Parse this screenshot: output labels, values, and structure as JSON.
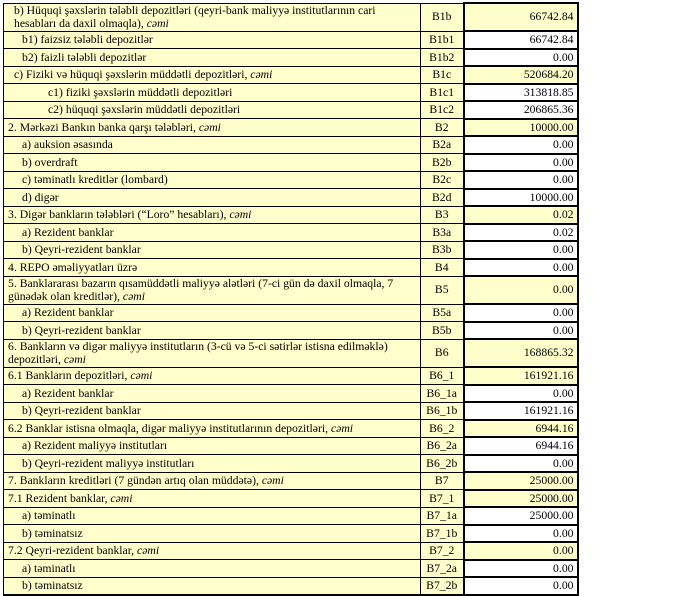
{
  "colors": {
    "cell_fill_yellow": "#FFFFCC",
    "cell_fill_white": "#FFFFFF",
    "border": "#000000",
    "text": "#000000"
  },
  "table": {
    "columns": [
      "description",
      "code",
      "value"
    ],
    "rows": [
      {
        "label": "b) Hüquqi şəxslərin tələbli depozitləri (qeyri-bank maliyyə institutlarının cari hesabları da daxil olmaqla), ",
        "label_italic": "cəmi",
        "code": "B1b",
        "value": "66742.84",
        "indent": 1,
        "summary": true
      },
      {
        "label": "b1) faizsiz tələbli depozitlər",
        "label_italic": "",
        "code": "B1b1",
        "value": "66742.84",
        "indent": 2,
        "summary": false
      },
      {
        "label": "b2) faizli tələbli depozitlər",
        "label_italic": "",
        "code": "B1b2",
        "value": "0.00",
        "indent": 2,
        "summary": false
      },
      {
        "label": "c) Fiziki və hüquqi şəxslərin müddətli depozitləri, ",
        "label_italic": "cəmi",
        "code": "B1c",
        "value": "520684.20",
        "indent": 1,
        "summary": true
      },
      {
        "label": "c1) fiziki şəxslərin müddətli depozitləri",
        "label_italic": "",
        "code": "B1c1",
        "value": "313818.85",
        "indent": 3,
        "summary": false
      },
      {
        "label": "c2) hüquqi şəxslərin müddətli depozitləri",
        "label_italic": "",
        "code": "B1c2",
        "value": "206865.36",
        "indent": 3,
        "summary": false
      },
      {
        "label": "2. Mərkəzi Bankın banka qarşı tələbləri, ",
        "label_italic": "cəmi",
        "code": "B2",
        "value": "10000.00",
        "indent": 0,
        "summary": true
      },
      {
        "label": "a) auksion əsasında",
        "label_italic": "",
        "code": "B2a",
        "value": "0.00",
        "indent": 2,
        "summary": false
      },
      {
        "label": "b) overdraft",
        "label_italic": "",
        "code": "B2b",
        "value": "0.00",
        "indent": 2,
        "summary": false
      },
      {
        "label": "c) təminatlı kreditlər (lombard)",
        "label_italic": "",
        "code": "B2c",
        "value": "0.00",
        "indent": 2,
        "summary": false
      },
      {
        "label": "d) digər",
        "label_italic": "",
        "code": "B2d",
        "value": "10000.00",
        "indent": 2,
        "summary": false
      },
      {
        "label": "3. Digər bankların tələbləri (“Loro” hesabları), ",
        "label_italic": "cəmi",
        "code": "B3",
        "value": "0.02",
        "indent": 0,
        "summary": true
      },
      {
        "label": "a) Rezident banklar",
        "label_italic": "",
        "code": "B3a",
        "value": "0.02",
        "indent": 2,
        "summary": false
      },
      {
        "label": "b) Qeyri-rezident banklar",
        "label_italic": "",
        "code": "B3b",
        "value": "0.00",
        "indent": 2,
        "summary": false
      },
      {
        "label": "4. REPO əməliyyatları  üzrə",
        "label_italic": "",
        "code": "B4",
        "value": "0.00",
        "indent": 0,
        "summary": false
      },
      {
        "label": "5. Banklararası bazarın qısamüddətli maliyyə alətləri (7-ci gün də daxil olmaqla, 7 günədək olan kreditlər), ",
        "label_italic": "cəmi",
        "code": "B5",
        "value": "0.00",
        "indent": 0,
        "summary": true
      },
      {
        "label": "a) Rezident banklar",
        "label_italic": "",
        "code": "B5a",
        "value": "0.00",
        "indent": 2,
        "summary": false
      },
      {
        "label": "b) Qeyri-rezident banklar",
        "label_italic": "",
        "code": "B5b",
        "value": "0.00",
        "indent": 2,
        "summary": false
      },
      {
        "label": "6. Bankların və digər maliyyə institutların (3-cü və 5-ci sətirlər istisna edilməklə) depozitləri, ",
        "label_italic": "cəmi",
        "code": "B6",
        "value": "168865.32",
        "indent": 0,
        "summary": true
      },
      {
        "label": "6.1  Bankların depozitləri, ",
        "label_italic": "cəmi",
        "code": "B6_1",
        "value": "161921.16",
        "indent": 0,
        "summary": true
      },
      {
        "label": "a) Rezident banklar",
        "label_italic": "",
        "code": "B6_1a",
        "value": "0.00",
        "indent": 2,
        "summary": false
      },
      {
        "label": "b) Qeyri-rezident banklar",
        "label_italic": "",
        "code": "B6_1b",
        "value": "161921.16",
        "indent": 2,
        "summary": false
      },
      {
        "label": "6.2 Banklar istisna olmaqla, digər maliyyə institutlarının depozitləri, ",
        "label_italic": "cəmi",
        "code": "B6_2",
        "value": "6944.16",
        "indent": 0,
        "summary": true
      },
      {
        "label": "a) Rezident maliyyə institutları",
        "label_italic": "",
        "code": "B6_2a",
        "value": "6944.16",
        "indent": 2,
        "summary": false
      },
      {
        "label": "b) Qeyri-rezident maliyyə institutları",
        "label_italic": "",
        "code": "B6_2b",
        "value": "0.00",
        "indent": 2,
        "summary": false
      },
      {
        "label": "7. Bankların kreditləri (7 gündən artıq olan müddətə), ",
        "label_italic": "cəmi",
        "code": "B7",
        "value": "25000.00",
        "indent": 0,
        "summary": true
      },
      {
        "label": "7.1 Rezident banklar, ",
        "label_italic": "cəmi",
        "code": "B7_1",
        "value": "25000.00",
        "indent": 0,
        "summary": true
      },
      {
        "label": "a) təminatlı",
        "label_italic": "",
        "code": "B7_1a",
        "value": "25000.00",
        "indent": 2,
        "summary": false
      },
      {
        "label": "b) təminatsız",
        "label_italic": "",
        "code": "B7_1b",
        "value": "0.00",
        "indent": 2,
        "summary": false
      },
      {
        "label": "7.2 Qeyri-rezident banklar, ",
        "label_italic": "cəmi",
        "code": "B7_2",
        "value": "0.00",
        "indent": 0,
        "summary": true
      },
      {
        "label": "a) təminatlı",
        "label_italic": "",
        "code": "B7_2a",
        "value": "0.00",
        "indent": 2,
        "summary": false
      },
      {
        "label": "b) təminatsız",
        "label_italic": "",
        "code": "B7_2b",
        "value": "0.00",
        "indent": 2,
        "summary": false
      }
    ]
  }
}
